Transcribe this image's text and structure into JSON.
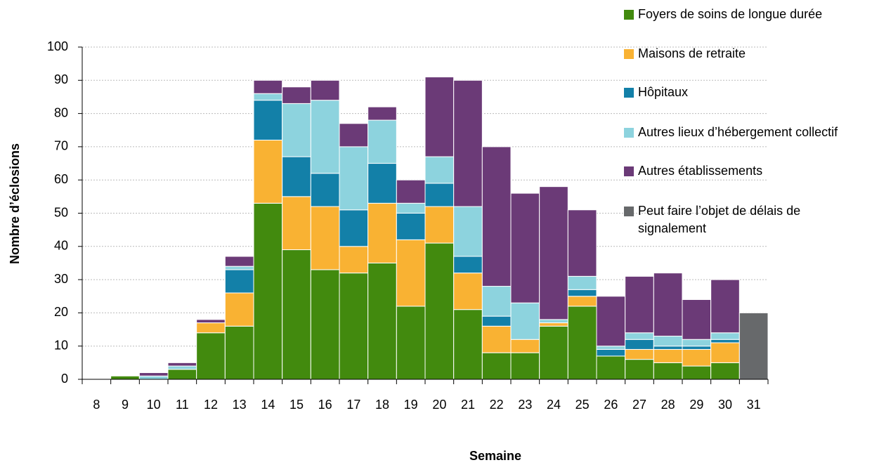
{
  "chart_data": {
    "type": "stacked_bar",
    "y_label": "Nombre d’éclosions",
    "x_label": "Semaine",
    "categories": [
      "8",
      "9",
      "10",
      "11",
      "12",
      "13",
      "14",
      "15",
      "16",
      "17",
      "18",
      "19",
      "20",
      "21",
      "22",
      "23",
      "24",
      "25",
      "26",
      "27",
      "28",
      "29",
      "30",
      "31"
    ],
    "series": [
      {
        "name": "Foyers de soins de longue durée",
        "color": "#428a0e",
        "values": [
          0,
          1,
          0,
          3,
          14,
          16,
          53,
          39,
          33,
          32,
          35,
          22,
          41,
          21,
          8,
          8,
          16,
          22,
          7,
          6,
          5,
          4,
          5,
          0
        ]
      },
      {
        "name": "Maisons de retraite",
        "color": "#f9b233",
        "values": [
          0,
          0,
          0,
          0,
          3,
          10,
          19,
          16,
          19,
          8,
          18,
          20,
          11,
          11,
          8,
          4,
          1,
          3,
          0,
          3,
          4,
          5,
          6,
          0
        ]
      },
      {
        "name": "Hôpitaux",
        "color": "#1380a8",
        "values": [
          0,
          0,
          0,
          0,
          0,
          7,
          12,
          12,
          10,
          11,
          12,
          8,
          7,
          5,
          3,
          0,
          0,
          2,
          2,
          3,
          1,
          1,
          1,
          0
        ]
      },
      {
        "name": "Autres lieux d’hébergement collectif",
        "color": "#8dd3de",
        "values": [
          0,
          0,
          1,
          1,
          0,
          1,
          2,
          16,
          22,
          19,
          13,
          3,
          8,
          15,
          9,
          11,
          1,
          4,
          1,
          2,
          3,
          2,
          2,
          0
        ]
      },
      {
        "name": "Autres établissements",
        "color": "#6b3a77",
        "values": [
          0,
          0,
          1,
          1,
          1,
          3,
          4,
          5,
          6,
          7,
          4,
          7,
          24,
          38,
          42,
          33,
          40,
          20,
          15,
          17,
          19,
          12,
          16,
          0
        ]
      },
      {
        "name": "Peut faire l’objet de délais de signalement",
        "color": "#67696b",
        "values": [
          0,
          0,
          0,
          0,
          0,
          0,
          0,
          0,
          0,
          0,
          0,
          0,
          0,
          0,
          0,
          0,
          0,
          0,
          0,
          0,
          0,
          0,
          0,
          20
        ]
      }
    ],
    "ylim": [
      0,
      100
    ],
    "yticks": [
      0,
      10,
      20,
      30,
      40,
      50,
      60,
      70,
      80,
      90,
      100
    ],
    "grid": true
  }
}
